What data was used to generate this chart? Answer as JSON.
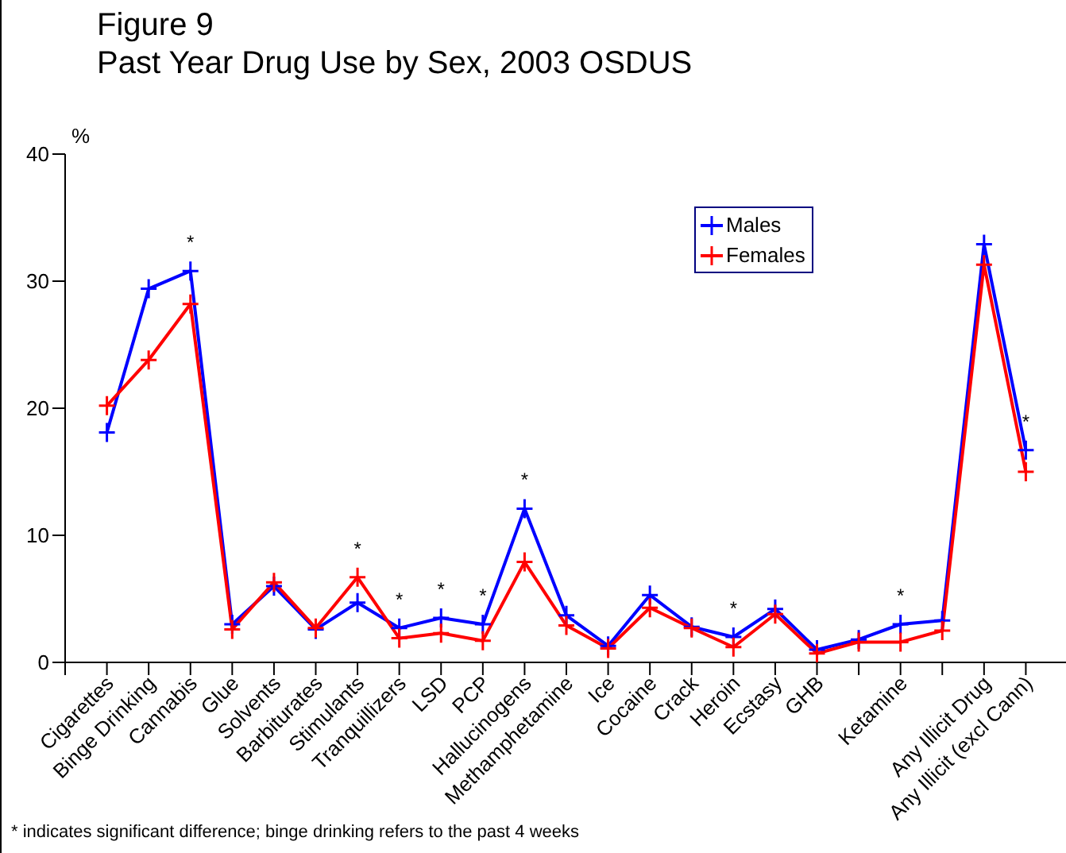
{
  "chart_data": {
    "type": "line",
    "title": "Figure 9",
    "subtitle": "Past Year Drug Use by Sex, 2003 OSDUS",
    "ylabel": "%",
    "categories": [
      "Cigarettes",
      "Binge Drinking",
      "Cannabis",
      "Glue",
      "Solvents",
      "Barbiturates",
      "Stimulants",
      "Tranquillizers",
      "LSD",
      "PCP",
      "Hallucinogens",
      "Methamphetamine",
      "Ice",
      "Cocaine",
      "Crack",
      "Heroin",
      "Ecstasy",
      "GHB",
      null,
      "Ketamine",
      null,
      "Any Illicit Drug",
      "Any Illicit (excl Cann)"
    ],
    "series": [
      {
        "name": "Males",
        "color": "#0000ff",
        "marker": "cross",
        "values": [
          18.1,
          29.4,
          30.8,
          3.0,
          6.0,
          2.6,
          4.7,
          2.7,
          3.5,
          3.0,
          12.1,
          3.7,
          1.3,
          5.3,
          2.8,
          2.0,
          4.2,
          1.0,
          1.8,
          3.0,
          3.3,
          32.9,
          16.7
        ]
      },
      {
        "name": "Females",
        "color": "#ff0000",
        "marker": "cross",
        "values": [
          20.2,
          23.8,
          28.2,
          2.6,
          6.3,
          2.7,
          6.7,
          1.9,
          2.3,
          1.7,
          7.9,
          2.9,
          1.1,
          4.3,
          2.7,
          1.2,
          3.8,
          0.7,
          1.6,
          1.6,
          2.5,
          31.3,
          15.0
        ]
      }
    ],
    "ylim": [
      0,
      40
    ],
    "yticks": [
      0,
      10,
      20,
      30,
      40
    ],
    "grid": false,
    "legend": "top right",
    "line_style": "solid",
    "annotations": [
      {
        "text": "*",
        "x": "Cannabis",
        "y": 30.8
      },
      {
        "text": "*",
        "x": "Stimulants",
        "y": 6.7
      },
      {
        "text": "*",
        "x": "Tranquillizers",
        "y": 2.7
      },
      {
        "text": "*",
        "x": "LSD",
        "y": 3.5
      },
      {
        "text": "*",
        "x": "PCP",
        "y": 3.0
      },
      {
        "text": "*",
        "x": "Hallucinogens",
        "y": 12.1
      },
      {
        "text": "*",
        "x": "Heroin",
        "y": 2.0
      },
      {
        "text": "*",
        "x": "Ketamine",
        "y": 3.0
      },
      {
        "text": "*",
        "x": "Any Illicit (excl Cann)",
        "y": 16.7
      },
      "* indicates significant difference; binge drinking refers to the past 4 weeks"
    ]
  }
}
